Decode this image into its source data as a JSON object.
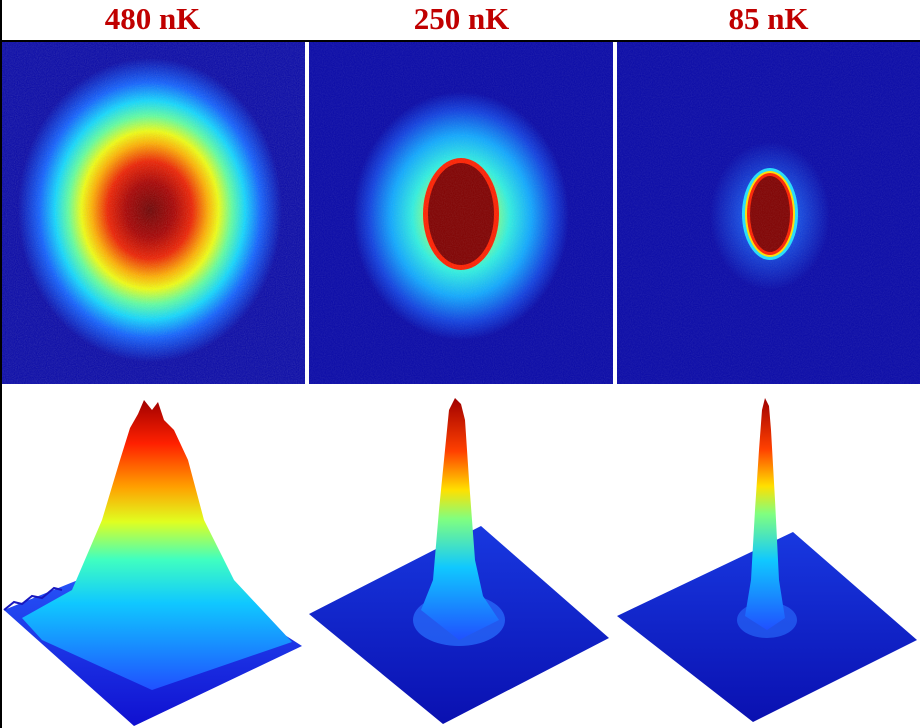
{
  "colors": {
    "label": "#c00000",
    "background_field": "#0808a8",
    "colormap": [
      "#000080",
      "#0000ff",
      "#00ffff",
      "#ffff00",
      "#ff0000",
      "#800000"
    ]
  },
  "panels": [
    {
      "label": "480 nK",
      "peak_level": 1.0,
      "cloud_shape": "broad"
    },
    {
      "label": "250 nK",
      "peak_level": 1.0,
      "cloud_shape": "condensate-with-halo"
    },
    {
      "label": "85 nK",
      "peak_level": 1.0,
      "cloud_shape": "pure-condensate"
    }
  ]
}
